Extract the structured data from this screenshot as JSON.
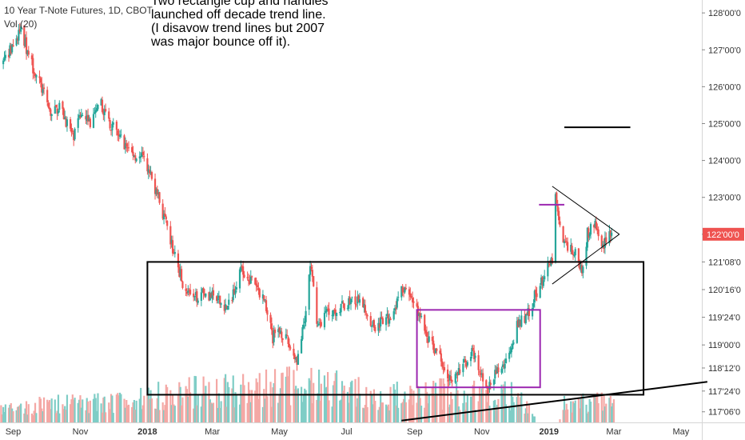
{
  "header": {
    "title": "10 Year T-Note Futures, 1D, CBOT",
    "volume_label": "Vol (20)"
  },
  "annotation": {
    "text": "Two rectangle cup and handles\nlaunched off decade trend line.\n(I disavow trend lines but 2007\nwas major bounce off it)."
  },
  "colors": {
    "up": "#26a69a",
    "down": "#ef5350",
    "up_volume": "#7fcdc6",
    "down_volume": "#f4a8a5",
    "rectangle": "#000000",
    "cup_rectangle": "#9c27b0",
    "trend_line": "#000000",
    "price_tag": "#ef5350"
  },
  "chart_data": {
    "type": "candlestick",
    "title": "10 Year T-Note Futures, 1D, CBOT",
    "y_axis": {
      "position": "right",
      "ticks": [
        "128'00'0",
        "127'00'0",
        "126'00'0",
        "125'00'0",
        "124'00'0",
        "123'00'0",
        "122'00'0",
        "121'08'0",
        "120'16'0",
        "119'24'0",
        "119'00'0",
        "118'12'0",
        "117'24'0",
        "117'06'0"
      ],
      "tick_values": [
        128.0,
        127.0,
        126.0,
        125.0,
        124.0,
        123.0,
        122.0,
        121.25,
        120.5,
        119.75,
        119.0,
        118.375,
        117.75,
        117.1875
      ],
      "range": [
        116.9,
        128.35
      ]
    },
    "x_axis": {
      "labels": [
        "Sep",
        "Nov",
        "2018",
        "Mar",
        "May",
        "Jul",
        "Sep",
        "Nov",
        "2019",
        "Mar",
        "May"
      ],
      "bold_labels": [
        "2018",
        "2019"
      ],
      "start_date": "2017-08-20",
      "end_date": "2019-05-20"
    },
    "current_price": {
      "value": 122.0,
      "label": "122'00'0"
    },
    "price_path": [
      [
        "2017-08-23",
        126.7
      ],
      [
        "2017-09-05",
        127.3
      ],
      [
        "2017-09-08",
        127.6
      ],
      [
        "2017-09-14",
        126.9
      ],
      [
        "2017-09-25",
        126.1
      ],
      [
        "2017-10-06",
        125.2
      ],
      [
        "2017-10-13",
        125.5
      ],
      [
        "2017-10-26",
        124.6
      ],
      [
        "2017-11-03",
        125.4
      ],
      [
        "2017-11-10",
        125.0
      ],
      [
        "2017-11-20",
        125.5
      ],
      [
        "2017-11-30",
        124.9
      ],
      [
        "2017-12-10",
        124.5
      ],
      [
        "2017-12-18",
        124.2
      ],
      [
        "2017-12-29",
        124.0
      ],
      [
        "2018-01-10",
        123.1
      ],
      [
        "2018-01-22",
        121.8
      ],
      [
        "2018-02-02",
        120.7
      ],
      [
        "2018-02-12",
        120.2
      ],
      [
        "2018-02-20",
        120.5
      ],
      [
        "2018-03-01",
        120.3
      ],
      [
        "2018-03-15",
        120.0
      ],
      [
        "2018-03-26",
        121.0
      ],
      [
        "2018-04-04",
        120.8
      ],
      [
        "2018-04-18",
        120.2
      ],
      [
        "2018-04-25",
        119.2
      ],
      [
        "2018-05-02",
        119.4
      ],
      [
        "2018-05-17",
        118.6
      ],
      [
        "2018-05-24",
        119.6
      ],
      [
        "2018-05-29",
        121.2
      ],
      [
        "2018-06-05",
        119.5
      ],
      [
        "2018-06-13",
        119.9
      ],
      [
        "2018-06-25",
        120.0
      ],
      [
        "2018-07-05",
        120.2
      ],
      [
        "2018-07-16",
        120.1
      ],
      [
        "2018-07-26",
        119.5
      ],
      [
        "2018-08-08",
        119.7
      ],
      [
        "2018-08-21",
        120.5
      ],
      [
        "2018-08-28",
        120.3
      ],
      [
        "2018-09-03",
        120.0
      ],
      [
        "2018-09-14",
        119.1
      ],
      [
        "2018-09-24",
        118.7
      ],
      [
        "2018-10-05",
        118.0
      ],
      [
        "2018-10-12",
        118.3
      ],
      [
        "2018-10-23",
        118.8
      ],
      [
        "2018-10-30",
        118.2
      ],
      [
        "2018-11-08",
        117.85
      ],
      [
        "2018-11-15",
        118.3
      ],
      [
        "2018-11-22",
        118.5
      ],
      [
        "2018-12-03",
        119.5
      ],
      [
        "2018-12-12",
        119.8
      ],
      [
        "2018-12-20",
        120.4
      ],
      [
        "2018-12-27",
        120.8
      ],
      [
        "2019-01-04",
        121.3
      ],
      [
        "2019-01-06",
        123.2
      ],
      [
        "2019-01-12",
        121.9
      ],
      [
        "2019-01-22",
        121.6
      ],
      [
        "2019-01-31",
        121.1
      ],
      [
        "2019-02-05",
        122.0
      ],
      [
        "2019-02-12",
        122.3
      ],
      [
        "2019-02-18",
        121.6
      ],
      [
        "2019-02-24",
        122.1
      ],
      [
        "2019-02-27",
        122.0
      ]
    ],
    "volume_path": [
      [
        "2017-08-20",
        0.2
      ],
      [
        "2017-10-01",
        0.3
      ],
      [
        "2017-12-01",
        0.35
      ],
      [
        "2018-02-15",
        0.55
      ],
      [
        "2018-05-30",
        0.65
      ],
      [
        "2018-08-01",
        0.45
      ],
      [
        "2018-10-05",
        0.5
      ],
      [
        "2018-12-05",
        0.45
      ],
      [
        "2018-12-20",
        0.05
      ],
      [
        "2019-01-10",
        0.05
      ],
      [
        "2019-01-15",
        0.35
      ],
      [
        "2019-03-03",
        0.35
      ]
    ],
    "drawings": {
      "black_rectangle": {
        "from": "2018-01-01",
        "to": "2019-03-28",
        "top": 121.25,
        "bottom": 117.65
      },
      "purple_rectangle": {
        "from": "2018-09-03",
        "to": "2018-12-24",
        "top": 119.95,
        "bottom": 117.85
      },
      "black_level_line": {
        "from": "2019-01-15",
        "to": "2019-03-16",
        "value": 124.9
      },
      "purple_level_line": {
        "from": "2018-12-23",
        "to": "2019-01-15",
        "value": 122.8
      },
      "triangle": {
        "apex_date": "2019-03-06",
        "apex_value": 122.0,
        "start_date": "2019-01-04",
        "start_top": 123.3,
        "start_bottom": 120.65
      },
      "trend_line": {
        "from_date": "2018-08-20",
        "from_value": 116.95,
        "to_date": "2019-05-25",
        "to_value": 118.0
      }
    }
  }
}
